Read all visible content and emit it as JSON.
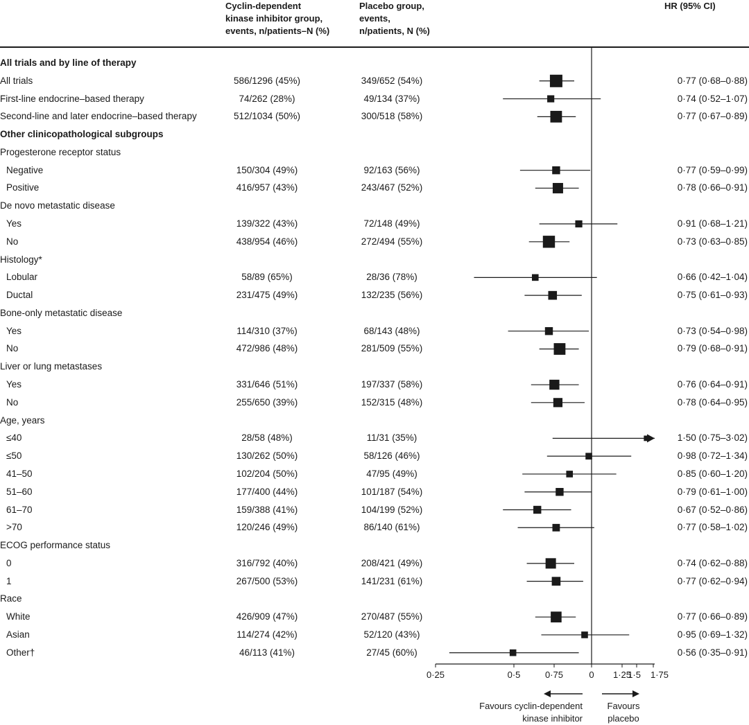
{
  "header": {
    "cdk_col": [
      "Cyclin-dependent",
      "kinase inhibitor group,",
      "events, n/patients–N (%)"
    ],
    "placebo_col": [
      "Placebo group,",
      "events,",
      "n/patients, N (%)"
    ],
    "hr_col": "HR (95% CI)"
  },
  "chart_data": {
    "type": "forest",
    "x_axis": {
      "ticks": [
        "0·25",
        "0·5",
        "0·75",
        "0",
        "1·25",
        "1·5",
        "1·75"
      ],
      "annotation_left": [
        "Favours cyclin-dependent",
        "kinase inhibitor"
      ],
      "annotation_right": [
        "Favours",
        "placebo"
      ]
    },
    "rows": [
      {
        "label": "All trials and by line of therapy",
        "kind": "section"
      },
      {
        "label": "All trials",
        "cdk": "586/1296 (45%)",
        "placebo": "349/652 (54%)",
        "hr_text": "0·77 (0·68–0·88)",
        "hr": 0.77,
        "lo": 0.68,
        "hi": 0.88,
        "weight": 1.0
      },
      {
        "label": "First-line endocrine–based therapy",
        "cdk": "74/262 (28%)",
        "placebo": "49/134 (37%)",
        "hr_text": "0·74 (0·52–1·07)",
        "hr": 0.74,
        "lo": 0.52,
        "hi": 1.07,
        "weight": 0.35
      },
      {
        "label": "Second-line and later endocrine–based therapy",
        "cdk": "512/1034 (50%)",
        "placebo": "300/518 (58%)",
        "hr_text": "0·77 (0·67–0·89)",
        "hr": 0.77,
        "lo": 0.67,
        "hi": 0.89,
        "weight": 0.9
      },
      {
        "label": "Other clinicopathological subgroups",
        "kind": "section"
      },
      {
        "label": "Progesterone receptor status",
        "kind": "group"
      },
      {
        "label": "Negative",
        "indent": true,
        "cdk": "150/304 (49%)",
        "placebo": "92/163 (56%)",
        "hr_text": "0·77 (0·59–0·99)",
        "hr": 0.77,
        "lo": 0.59,
        "hi": 0.99,
        "weight": 0.45
      },
      {
        "label": "Positive",
        "indent": true,
        "cdk": "416/957 (43%)",
        "placebo": "243/467 (52%)",
        "hr_text": "0·78 (0·66–0·91)",
        "hr": 0.78,
        "lo": 0.66,
        "hi": 0.91,
        "weight": 0.75
      },
      {
        "label": "De novo metastatic disease",
        "kind": "group"
      },
      {
        "label": "Yes",
        "indent": true,
        "cdk": "139/322 (43%)",
        "placebo": "72/148 (49%)",
        "hr_text": "0·91 (0·68–1·21)",
        "hr": 0.91,
        "lo": 0.68,
        "hi": 1.21,
        "weight": 0.35
      },
      {
        "label": "No",
        "indent": true,
        "cdk": "438/954 (46%)",
        "placebo": "272/494 (55%)",
        "hr_text": "0·73 (0·63–0·85)",
        "hr": 0.73,
        "lo": 0.63,
        "hi": 0.85,
        "weight": 0.95
      },
      {
        "label": "Histology*",
        "kind": "group"
      },
      {
        "label": "Lobular",
        "indent": true,
        "cdk": "58/89 (65%)",
        "placebo": "28/36 (78%)",
        "hr_text": "0·66 (0·42–1·04)",
        "hr": 0.66,
        "lo": 0.42,
        "hi": 1.04,
        "weight": 0.3
      },
      {
        "label": "Ductal",
        "indent": true,
        "cdk": "231/475 (49%)",
        "placebo": "132/235 (56%)",
        "hr_text": "0·75 (0·61–0·93)",
        "hr": 0.75,
        "lo": 0.61,
        "hi": 0.93,
        "weight": 0.55
      },
      {
        "label": "Bone-only metastatic disease",
        "kind": "group"
      },
      {
        "label": "Yes",
        "indent": true,
        "cdk": "114/310 (37%)",
        "placebo": "68/143 (48%)",
        "hr_text": "0·73 (0·54–0·98)",
        "hr": 0.73,
        "lo": 0.54,
        "hi": 0.98,
        "weight": 0.45
      },
      {
        "label": "No",
        "indent": true,
        "cdk": "472/986 (48%)",
        "placebo": "281/509 (55%)",
        "hr_text": "0·79 (0·68–0·91)",
        "hr": 0.79,
        "lo": 0.68,
        "hi": 0.91,
        "weight": 0.9
      },
      {
        "label": "Liver or lung metastases",
        "kind": "group"
      },
      {
        "label": "Yes",
        "indent": true,
        "cdk": "331/646 (51%)",
        "placebo": "197/337 (58%)",
        "hr_text": "0·76 (0·64–0·91)",
        "hr": 0.76,
        "lo": 0.64,
        "hi": 0.91,
        "weight": 0.7
      },
      {
        "label": "No",
        "indent": true,
        "cdk": "255/650 (39%)",
        "placebo": "152/315 (48%)",
        "hr_text": "0·78 (0·64–0·95)",
        "hr": 0.78,
        "lo": 0.64,
        "hi": 0.95,
        "weight": 0.6
      },
      {
        "label": "Age, years",
        "kind": "group"
      },
      {
        "label": "≤40",
        "indent": true,
        "cdk": "28/58 (48%)",
        "placebo": "11/31 (35%)",
        "hr_text": "1·50 (0·75–3·02)",
        "hr": 1.5,
        "lo": 0.75,
        "hi": 3.02,
        "weight": 0.15,
        "arrow": true
      },
      {
        "label": "≤50",
        "indent": true,
        "cdk": "130/262 (50%)",
        "placebo": "58/126 (46%)",
        "hr_text": "0·98 (0·72–1·34)",
        "hr": 0.98,
        "lo": 0.72,
        "hi": 1.34,
        "weight": 0.3
      },
      {
        "label": "41–50",
        "indent": true,
        "cdk": "102/204 (50%)",
        "placebo": "47/95 (49%)",
        "hr_text": "0·85 (0·60–1·20)",
        "hr": 0.85,
        "lo": 0.6,
        "hi": 1.2,
        "weight": 0.3
      },
      {
        "label": "51–60",
        "indent": true,
        "cdk": "177/400 (44%)",
        "placebo": "101/187 (54%)",
        "hr_text": "0·79 (0·61–1·00)",
        "hr": 0.79,
        "lo": 0.61,
        "hi": 1.0,
        "weight": 0.45
      },
      {
        "label": "61–70",
        "indent": true,
        "cdk": "159/388 (41%)",
        "placebo": "104/199 (52%)",
        "hr_text": "0·67 (0·52–0·86)",
        "hr": 0.67,
        "lo": 0.52,
        "hi": 0.86,
        "weight": 0.45
      },
      {
        "label": ">70",
        "indent": true,
        "cdk": "120/246 (49%)",
        "placebo": "86/140 (61%)",
        "hr_text": "0·77 (0·58–1·02)",
        "hr": 0.77,
        "lo": 0.58,
        "hi": 1.02,
        "weight": 0.4
      },
      {
        "label": "ECOG performance status",
        "kind": "group"
      },
      {
        "label": "0",
        "indent": true,
        "cdk": "316/792 (40%)",
        "placebo": "208/421 (49%)",
        "hr_text": "0·74 (0·62–0·88)",
        "hr": 0.74,
        "lo": 0.62,
        "hi": 0.88,
        "weight": 0.75
      },
      {
        "label": "1",
        "indent": true,
        "cdk": "267/500 (53%)",
        "placebo": "141/231 (61%)",
        "hr_text": "0·77 (0·62–0·94)",
        "hr": 0.77,
        "lo": 0.62,
        "hi": 0.94,
        "weight": 0.55
      },
      {
        "label": "Race",
        "kind": "group"
      },
      {
        "label": "White",
        "indent": true,
        "cdk": "426/909 (47%)",
        "placebo": "270/487 (55%)",
        "hr_text": "0·77 (0·66–0·89)",
        "hr": 0.77,
        "lo": 0.66,
        "hi": 0.89,
        "weight": 0.8
      },
      {
        "label": "Asian",
        "indent": true,
        "cdk": "114/274 (42%)",
        "placebo": "52/120 (43%)",
        "hr_text": "0·95 (0·69–1·32)",
        "hr": 0.95,
        "lo": 0.69,
        "hi": 1.32,
        "weight": 0.3
      },
      {
        "label": "Other†",
        "indent": true,
        "cdk": "46/113 (41%)",
        "placebo": "27/45 (60%)",
        "hr_text": "0·56 (0·35–0·91)",
        "hr": 0.56,
        "lo": 0.35,
        "hi": 0.91,
        "weight": 0.3
      }
    ]
  }
}
